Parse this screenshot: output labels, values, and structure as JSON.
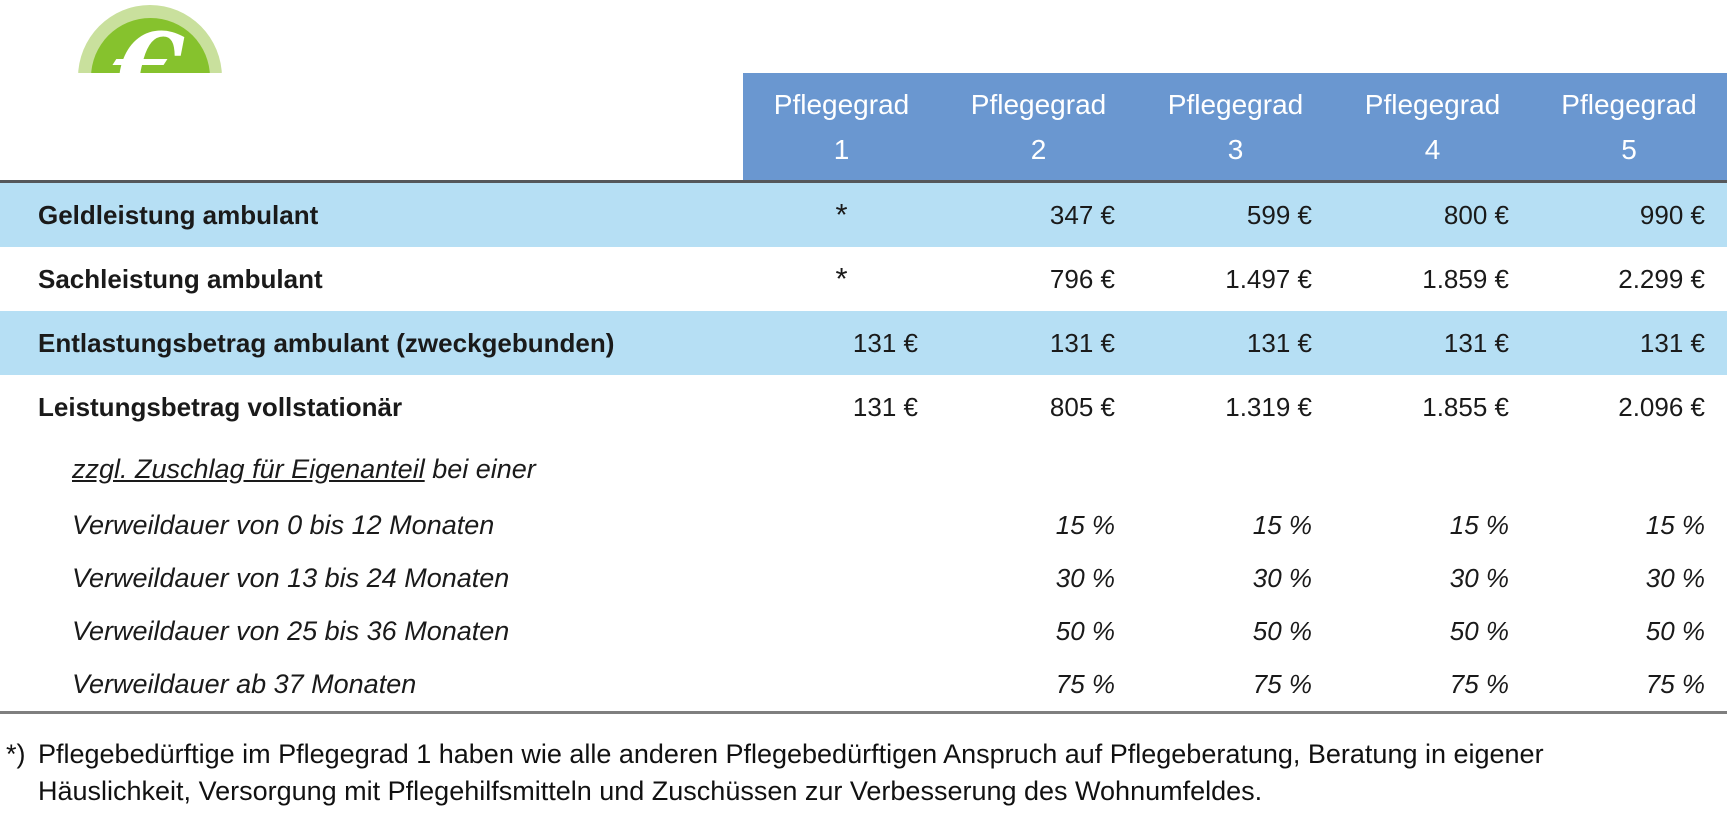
{
  "icon": {
    "name": "euro-icon",
    "symbol": "€",
    "outer_color": "#c9e09d",
    "inner_color": "#86c22d"
  },
  "colors": {
    "header_blue": "#6a97d0",
    "row_light_blue": "#b6dff4",
    "top_rule": "#55575a",
    "bottom_rule": "#7f7f7f",
    "text": "#1a1a1a"
  },
  "table": {
    "header": {
      "label": "Pflegegrad",
      "columns": [
        "1",
        "2",
        "3",
        "4",
        "5"
      ]
    },
    "rows": [
      {
        "label": "Geldleistung ambulant",
        "style": "main",
        "shaded": true,
        "values": [
          "*",
          "347 €",
          "599 €",
          "800 €",
          "990 €"
        ]
      },
      {
        "label": "Sachleistung ambulant",
        "style": "main",
        "shaded": false,
        "values": [
          "*",
          "796 €",
          "1.497 €",
          "1.859 €",
          "2.299 €"
        ]
      },
      {
        "label": "Entlastungsbetrag ambulant (zweckgebunden)",
        "style": "main",
        "shaded": true,
        "values": [
          "131 €",
          "131 €",
          "131 €",
          "131 €",
          "131 €"
        ]
      },
      {
        "label": "Leistungsbetrag vollstationär",
        "style": "main",
        "shaded": false,
        "values": [
          "131 €",
          "805 €",
          "1.319 €",
          "1.855 €",
          "2.096 €"
        ]
      },
      {
        "label_parts": [
          {
            "text": "zzgl. Zuschlag für Eigenanteil",
            "underline": true
          },
          {
            "text": " bei einer",
            "underline": false
          }
        ],
        "style": "subhead",
        "shaded": false,
        "values": [
          "",
          "",
          "",
          "",
          ""
        ]
      },
      {
        "label": "Verweildauer von 0 bis 12 Monaten",
        "style": "sub",
        "shaded": false,
        "values": [
          "",
          "15 %",
          "15 %",
          "15 %",
          "15 %"
        ]
      },
      {
        "label": "Verweildauer von 13 bis 24 Monaten",
        "style": "sub",
        "shaded": false,
        "values": [
          "",
          "30 %",
          "30 %",
          "30 %",
          "30 %"
        ]
      },
      {
        "label": "Verweildauer von 25 bis 36 Monaten",
        "style": "sub",
        "shaded": false,
        "values": [
          "",
          "50 %",
          "50 %",
          "50 %",
          "50 %"
        ]
      },
      {
        "label": "Verweildauer ab 37 Monaten",
        "style": "sub",
        "shaded": false,
        "values": [
          "",
          "75 %",
          "75 %",
          "75 %",
          "75 %"
        ]
      }
    ]
  },
  "footnote": {
    "marker": "*)",
    "line1": "Pflegebedürftige im Pflegegrad 1 haben wie alle anderen Pflegebedürftigen Anspruch auf Pflegeberatung, Beratung in eigener",
    "line2": "Häuslichkeit, Versorgung mit Pflegehilfsmitteln und Zuschüssen zur Verbesserung des Wohnumfeldes."
  }
}
